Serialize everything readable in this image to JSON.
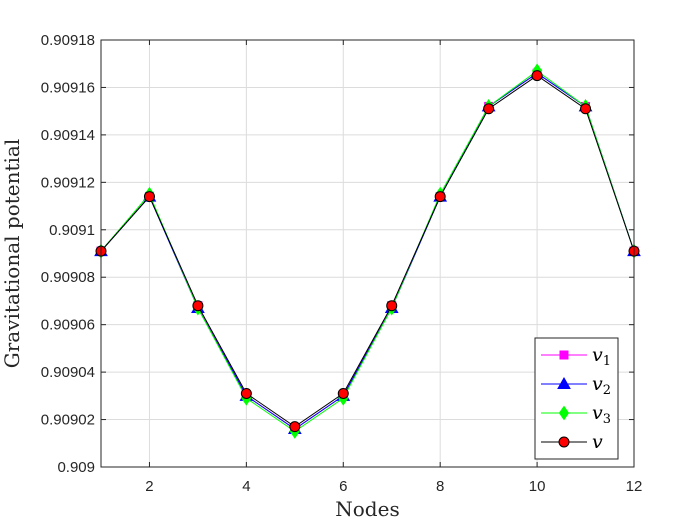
{
  "chart_data": {
    "type": "line",
    "xlabel": "Nodes",
    "ylabel": "Gravitational potential",
    "xlim": [
      1,
      12
    ],
    "ylim": [
      0.909,
      0.90918
    ],
    "xticks": [
      2,
      4,
      6,
      8,
      10,
      12
    ],
    "xtick_labels": [
      "2",
      "4",
      "6",
      "8",
      "10",
      "12"
    ],
    "yticks": [
      0.909,
      0.90902,
      0.90904,
      0.90906,
      0.90908,
      0.9091,
      0.90912,
      0.90914,
      0.90916,
      0.90918
    ],
    "ytick_labels": [
      "0.909",
      "0.90902",
      "0.90904",
      "0.90906",
      "0.90908",
      "0.9091",
      "0.90912",
      "0.90914",
      "0.90916",
      "0.90918"
    ],
    "grid": true,
    "legend_position": "bottom-right",
    "x": [
      1,
      2,
      3,
      4,
      5,
      6,
      7,
      8,
      9,
      10,
      11,
      12
    ],
    "series": [
      {
        "name": "v1",
        "label_base": "v",
        "label_sub": "1",
        "color": "#ff00ff",
        "marker": "square",
        "values": [
          0.909091,
          0.909114,
          0.909068,
          0.90903,
          0.909016,
          0.90903,
          0.909068,
          0.909114,
          0.909152,
          0.909166,
          0.909152,
          0.909091
        ]
      },
      {
        "name": "v2",
        "label_base": "v",
        "label_sub": "2",
        "color": "#0000ff",
        "marker": "triangle",
        "values": [
          0.909091,
          0.909114,
          0.909067,
          0.90903,
          0.909016,
          0.90903,
          0.909067,
          0.909114,
          0.909152,
          0.909166,
          0.909152,
          0.909091
        ]
      },
      {
        "name": "v3",
        "label_base": "v",
        "label_sub": "3",
        "color": "#00ff00",
        "marker": "diamond",
        "values": [
          0.909091,
          0.909115,
          0.909067,
          0.909029,
          0.909015,
          0.909029,
          0.909067,
          0.909115,
          0.909152,
          0.909167,
          0.909152,
          0.909091
        ]
      },
      {
        "name": "v",
        "label_base": "v",
        "label_sub": "",
        "color": "#000000",
        "marker_fill": "#ff0000",
        "marker": "circle",
        "values": [
          0.909091,
          0.909114,
          0.909068,
          0.909031,
          0.909017,
          0.909031,
          0.909068,
          0.909114,
          0.909151,
          0.909165,
          0.909151,
          0.909091
        ]
      }
    ]
  }
}
